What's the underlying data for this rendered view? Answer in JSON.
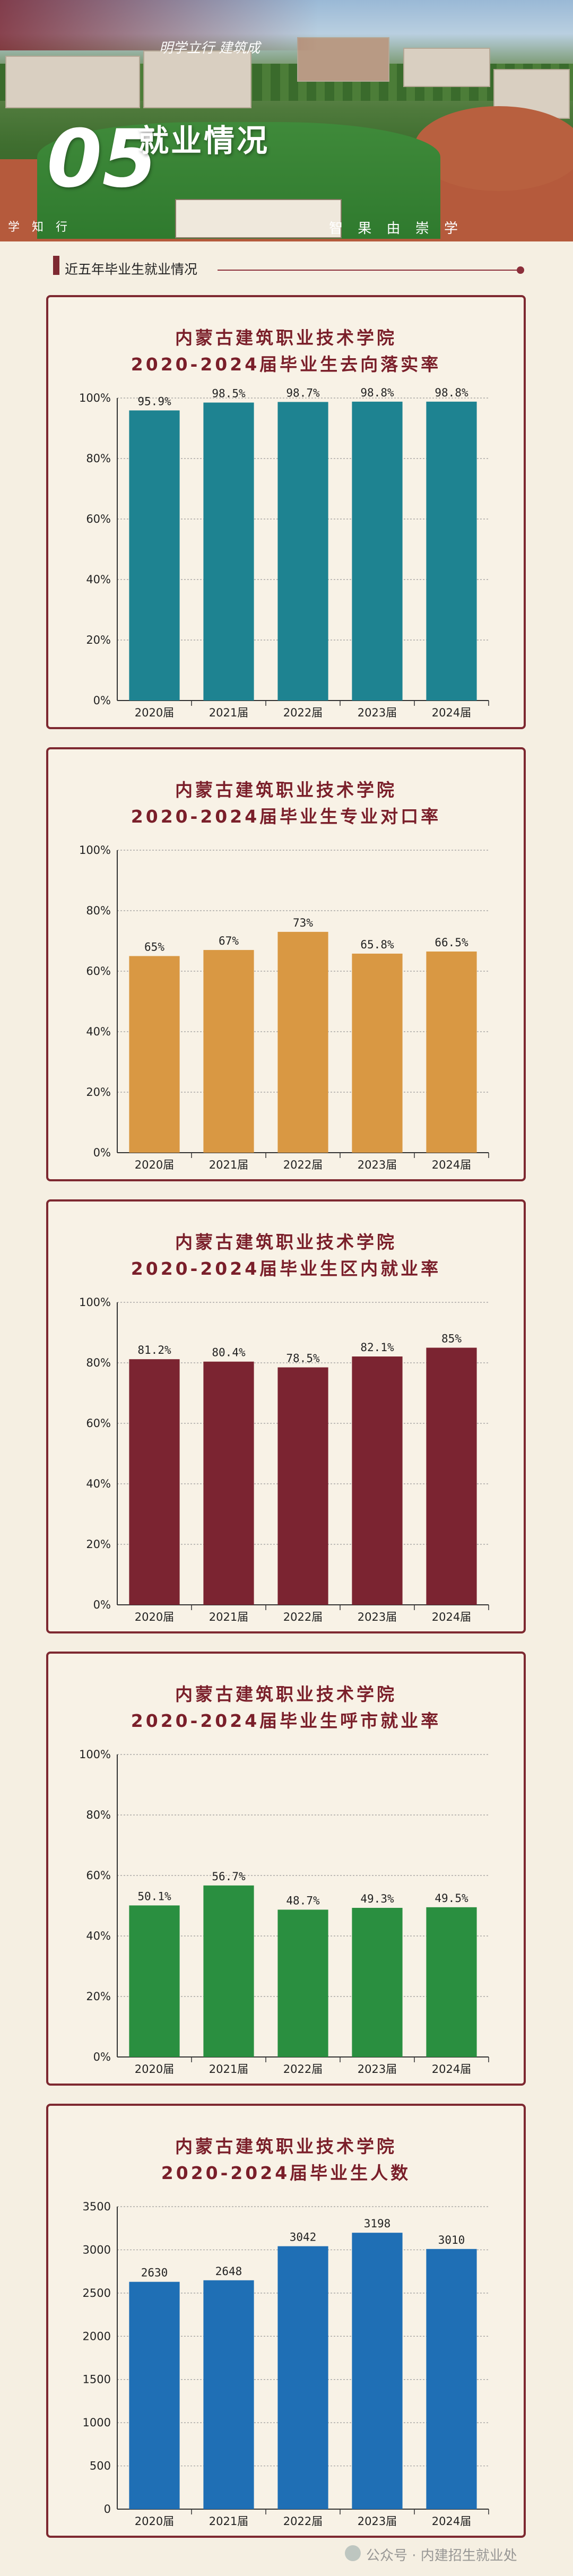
{
  "header": {
    "section_number": "05",
    "section_title": "就业情况",
    "motto": "明学立行 建筑成",
    "gate_right": "智 果 由 崇 学",
    "gate_left": "学 知 行"
  },
  "subheading": "近五年毕业生就业情况",
  "watermark": "公众号 · 内建招生就业处",
  "colors": {
    "frame": "#7e2931",
    "title": "#7a1f2a"
  },
  "chart_data": [
    {
      "type": "bar",
      "title_line1": "内蒙古建筑职业技术学院",
      "title_line2": "2020-2024届毕业生去向落实率",
      "categories": [
        "2020届",
        "2021届",
        "2022届",
        "2023届",
        "2024届"
      ],
      "values": [
        95.9,
        98.5,
        98.7,
        98.8,
        98.8
      ],
      "value_labels": [
        "95.9%",
        "98.5%",
        "98.7%",
        "98.8%",
        "98.8%"
      ],
      "yticks": [
        "0%",
        "20%",
        "40%",
        "60%",
        "80%",
        "100%"
      ],
      "ylim": [
        0,
        100
      ],
      "color": "#1e8391",
      "grid": true
    },
    {
      "type": "bar",
      "title_line1": "内蒙古建筑职业技术学院",
      "title_line2": "2020-2024届毕业生专业对口率",
      "categories": [
        "2020届",
        "2021届",
        "2022届",
        "2023届",
        "2024届"
      ],
      "values": [
        65,
        67,
        73,
        65.8,
        66.5
      ],
      "value_labels": [
        "65%",
        "67%",
        "73%",
        "65.8%",
        "66.5%"
      ],
      "yticks": [
        "0%",
        "20%",
        "40%",
        "60%",
        "80%",
        "100%"
      ],
      "ylim": [
        0,
        100
      ],
      "color": "#d99843",
      "grid": true
    },
    {
      "type": "bar",
      "title_line1": "内蒙古建筑职业技术学院",
      "title_line2": "2020-2024届毕业生区内就业率",
      "categories": [
        "2020届",
        "2021届",
        "2022届",
        "2023届",
        "2024届"
      ],
      "values": [
        81.2,
        80.4,
        78.5,
        82.1,
        85
      ],
      "value_labels": [
        "81.2%",
        "80.4%",
        "78.5%",
        "82.1%",
        "85%"
      ],
      "yticks": [
        "0%",
        "20%",
        "40%",
        "60%",
        "80%",
        "100%"
      ],
      "ylim": [
        0,
        100
      ],
      "color": "#7b2431",
      "grid": true
    },
    {
      "type": "bar",
      "title_line1": "内蒙古建筑职业技术学院",
      "title_line2": "2020-2024届毕业生呼市就业率",
      "categories": [
        "2020届",
        "2021届",
        "2022届",
        "2023届",
        "2024届"
      ],
      "values": [
        50.1,
        56.7,
        48.7,
        49.3,
        49.5
      ],
      "value_labels": [
        "50.1%",
        "56.7%",
        "48.7%",
        "49.3%",
        "49.5%"
      ],
      "yticks": [
        "0%",
        "20%",
        "40%",
        "60%",
        "80%",
        "100%"
      ],
      "ylim": [
        0,
        100
      ],
      "color": "#2a8f40",
      "grid": true
    },
    {
      "type": "bar",
      "title_line1": "内蒙古建筑职业技术学院",
      "title_line2": "2020-2024届毕业生人数",
      "categories": [
        "2020届",
        "2021届",
        "2022届",
        "2023届",
        "2024届"
      ],
      "values": [
        2630,
        2648,
        3042,
        3198,
        3010
      ],
      "value_labels": [
        "2630",
        "2648",
        "3042",
        "3198",
        "3010"
      ],
      "yticks": [
        "0",
        "500",
        "1000",
        "1500",
        "2000",
        "2500",
        "3000",
        "3500"
      ],
      "ylim": [
        0,
        3500
      ],
      "color": "#1f6fb5",
      "grid": true
    }
  ]
}
